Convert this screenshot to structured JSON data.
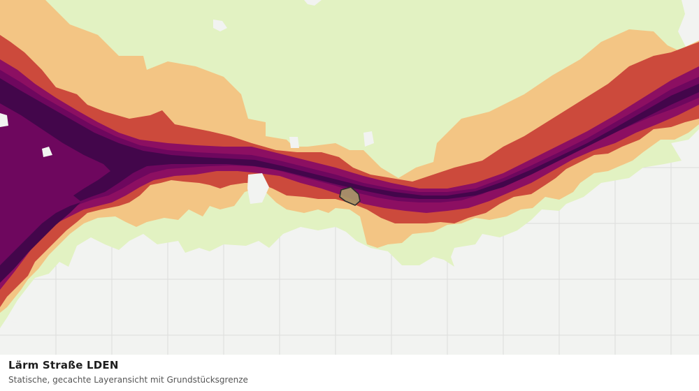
{
  "caption": {
    "title": "Lärm Straße LDEN",
    "subtitle": "Statische, gecachte Layeransicht mit Grundstücksgrenze"
  },
  "map": {
    "base_color": "#f2f3f1",
    "grid_color": "#dcdcdc",
    "noise_bands": [
      {
        "name": "band-1",
        "color": "#e2f2c2"
      },
      {
        "name": "band-2",
        "color": "#f3c584"
      },
      {
        "name": "band-3",
        "color": "#cc4a3c"
      },
      {
        "name": "band-4",
        "color": "#8c0f62"
      },
      {
        "name": "band-5",
        "color": "#6e075e"
      },
      {
        "name": "band-6",
        "color": "#43064b"
      }
    ],
    "parcel_color": "#a89a6a",
    "parcel_outline_color": "#2d2d2d"
  }
}
